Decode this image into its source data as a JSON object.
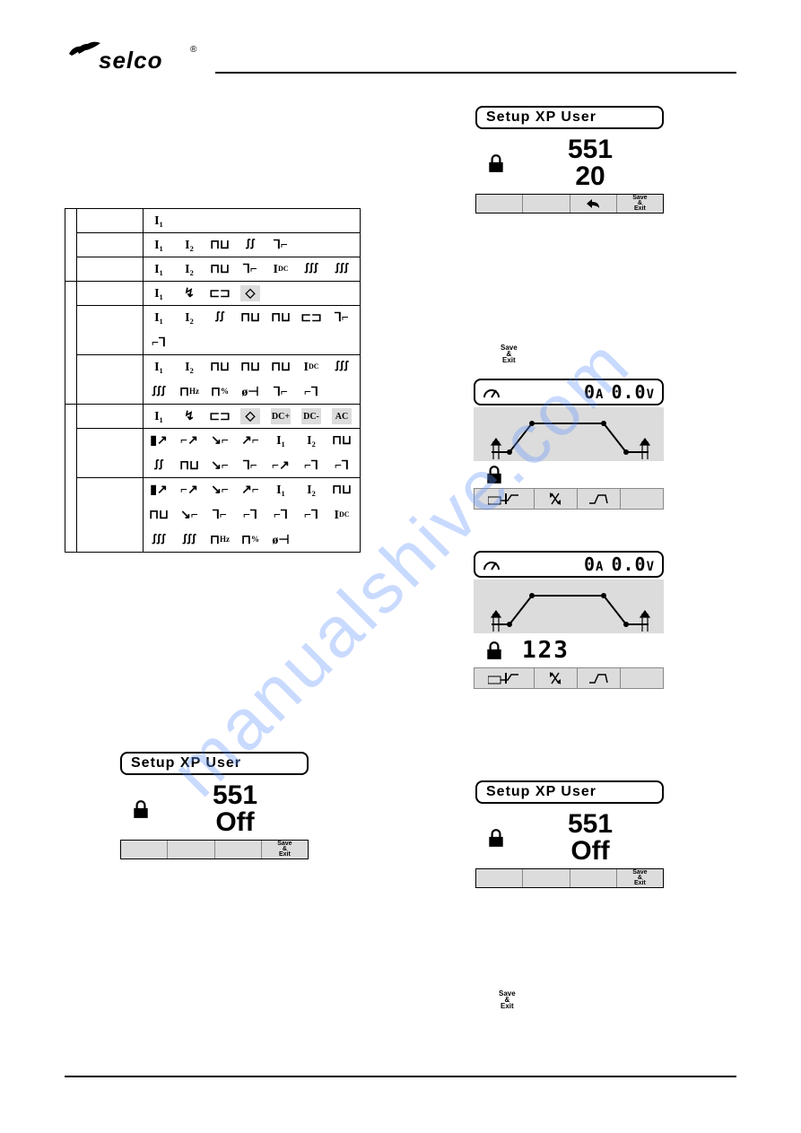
{
  "watermark": "manualshive.com",
  "logo_text": "selco",
  "table": {
    "rows": [
      {
        "a": "",
        "b": "",
        "icons": [
          "I₁"
        ]
      },
      {
        "a": "",
        "b": "",
        "icons": [
          "I₁",
          "I₂",
          "⊓⊔",
          "ꭍꭍ",
          "⅂⌐"
        ]
      },
      {
        "a": "",
        "b": "",
        "icons": [
          "I₁",
          "I₂",
          "⊓⊔",
          "⅂⌐",
          "I_DC",
          "ꭍꭍꭍ",
          "ꭍꭍꭍ"
        ]
      },
      {
        "a": "",
        "b": "",
        "icons": [
          "I₁",
          "↯",
          "⊏⊐",
          "◇*"
        ]
      },
      {
        "a": "",
        "b": "",
        "icons": [
          "I₁",
          "I₂",
          "ꭍꭍ",
          "⊓⊔",
          "⊓⊔",
          "⊏⊐",
          "⅂⌐",
          "⌐⅂"
        ]
      },
      {
        "a": "",
        "b": "",
        "icons": [
          "I₁",
          "I₂",
          "⊓⊔",
          "⊓⊔",
          "⊓⊔",
          "I_DC",
          "ꭍꭍꭍ",
          "ꭍꭍꭍ",
          "⊓Hz",
          "⊓%",
          "ø⊣",
          "⅂⌐",
          "⌐⅂"
        ]
      },
      {
        "a": "",
        "b": "",
        "icons": [
          "I₁",
          "↯",
          "⊏⊐",
          "◇*",
          "DC+*",
          "DC-*",
          "AC*"
        ]
      },
      {
        "a": "",
        "b": "",
        "icons": [
          "▮↗",
          "⌐↗",
          "↘⌐",
          "↗⌐",
          "I₁",
          "I₂",
          "⊓⊔",
          "ꭍꭍ",
          "⊓⊔",
          "↘⌐",
          "⅂⌐",
          "⌐↗",
          "⌐⅂",
          "⌐⅂"
        ]
      },
      {
        "a": "",
        "b": "",
        "icons": [
          "▮↗",
          "⌐↗",
          "↘⌐",
          "↗⌐",
          "I₁",
          "I₂",
          "⊓⊔",
          "⊓⊔",
          "↘⌐",
          "⅂⌐",
          "⌐⅂",
          "⌐⅂",
          "⌐⅂",
          "I_DC",
          "ꭍꭍꭍ",
          "ꭍꭍꭍ",
          "⊓Hz",
          "⊓%",
          "ø⊣"
        ]
      }
    ]
  },
  "panel1": {
    "title": "Setup XP User",
    "num": "551",
    "val": "20",
    "btn3": "⟲",
    "btn4": "Save\n& Exit"
  },
  "save_label": {
    "line1": "Save",
    "line2": "&",
    "line3": "Exit"
  },
  "weld1": {
    "amp": "0",
    "amp_unit": "A",
    "volt": "0.0",
    "volt_unit": "V"
  },
  "weld2": {
    "amp": "0",
    "amp_unit": "A",
    "volt": "0.0",
    "volt_unit": "V",
    "pw": "123"
  },
  "panel2": {
    "title": "Setup XP User",
    "num": "551",
    "val": "Off",
    "btn4": "Save\n& Exit"
  },
  "panel3": {
    "title": "Setup XP User",
    "num": "551",
    "val": "Off",
    "btn4": "Save\n& Exit"
  },
  "save_label2": {
    "line1": "Save",
    "line2": "&",
    "line3": "Exit"
  },
  "colors": {
    "watermark": "rgba(100,150,255,0.35)",
    "lcd_bar": "#dcdcdc",
    "text": "#000000",
    "bg": "#ffffff"
  }
}
